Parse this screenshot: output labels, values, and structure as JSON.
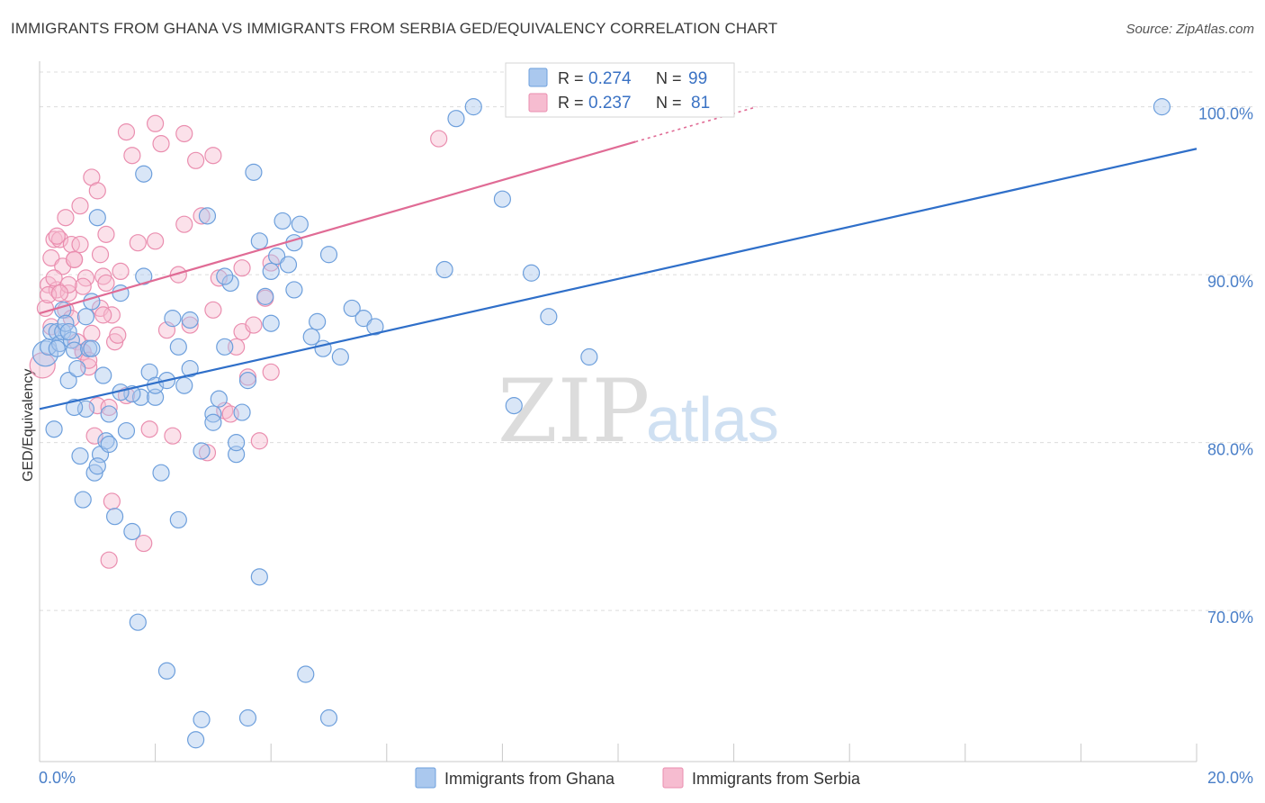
{
  "header": {
    "title": "IMMIGRANTS FROM GHANA VS IMMIGRANTS FROM SERBIA GED/EQUIVALENCY CORRELATION CHART",
    "source": "Source: ZipAtlas.com"
  },
  "watermark": {
    "zip": "ZIP",
    "atlas": "atlas"
  },
  "legend_box": {
    "r_label": "R =",
    "n_label": "N =",
    "ghana": {
      "r": "0.274",
      "n": "99"
    },
    "serbia": {
      "r": "0.237",
      "n": "81"
    }
  },
  "colors": {
    "ghana_fill": "#aac8ee",
    "ghana_stroke": "#6d9fdc",
    "ghana_line": "#2f6fc9",
    "serbia_fill": "#f6bcd0",
    "serbia_stroke": "#ea8eaf",
    "serbia_line": "#e06b95",
    "grid": "#dcdcdc",
    "tick_text": "#4a7fc8"
  },
  "chart_data": {
    "type": "scatter",
    "title": "IMMIGRANTS FROM GHANA VS IMMIGRANTS FROM SERBIA GED/EQUIVALENCY CORRELATION CHART",
    "xlabel": "",
    "ylabel": "GED/Equivalency",
    "xlim": [
      0,
      20
    ],
    "ylim": [
      61,
      102.5
    ],
    "x_tick_labels": [
      "0.0%",
      "20.0%"
    ],
    "y_ticks": [
      70,
      80,
      90,
      100
    ],
    "y_tick_labels": [
      "70.0%",
      "80.0%",
      "90.0%",
      "100.0%"
    ],
    "grid": true,
    "legend": "bottom-center",
    "series": [
      {
        "name": "Immigrants from Ghana",
        "r": 0.274,
        "n": 99,
        "trend": {
          "x": [
            0,
            20
          ],
          "y": [
            82.0,
            97.5
          ]
        },
        "x": [
          0.1,
          0.15,
          0.2,
          0.25,
          0.3,
          0.35,
          0.4,
          0.4,
          0.45,
          0.5,
          0.55,
          0.6,
          0.65,
          0.7,
          0.75,
          0.8,
          0.85,
          0.9,
          0.95,
          1.0,
          1.05,
          1.1,
          1.15,
          1.2,
          1.3,
          1.4,
          1.5,
          1.6,
          1.7,
          1.75,
          1.8,
          1.9,
          2.0,
          2.1,
          2.2,
          2.3,
          2.4,
          2.5,
          2.6,
          2.7,
          2.8,
          2.9,
          3.0,
          3.1,
          3.2,
          3.3,
          3.4,
          3.5,
          3.6,
          3.7,
          3.8,
          3.9,
          4.0,
          4.1,
          4.2,
          4.3,
          4.4,
          4.5,
          4.6,
          4.7,
          4.8,
          4.9,
          5.0,
          5.2,
          5.4,
          5.6,
          5.8,
          7.2,
          7.5,
          8.0,
          8.2,
          8.5,
          8.8,
          9.5,
          0.3,
          0.6,
          0.9,
          1.2,
          1.6,
          2.0,
          2.4,
          2.8,
          3.2,
          3.6,
          4.0,
          4.4,
          0.5,
          0.8,
          1.0,
          1.4,
          1.8,
          2.2,
          2.6,
          3.0,
          3.4,
          3.8,
          7.0,
          19.4,
          5.0
        ],
        "y": [
          85.3,
          85.7,
          86.6,
          80.8,
          86.6,
          85.9,
          86.6,
          87.9,
          87.1,
          83.7,
          86.1,
          85.5,
          84.4,
          79.2,
          76.6,
          82.0,
          85.6,
          88.4,
          78.2,
          93.4,
          79.3,
          84.0,
          80.1,
          79.9,
          75.6,
          88.9,
          80.7,
          74.7,
          69.3,
          82.7,
          96.0,
          84.2,
          82.7,
          78.2,
          66.4,
          87.4,
          85.7,
          83.4,
          84.4,
          62.3,
          79.5,
          93.5,
          81.7,
          82.6,
          85.7,
          89.5,
          79.3,
          81.8,
          63.6,
          96.1,
          92.0,
          88.7,
          90.2,
          91.1,
          93.2,
          90.6,
          89.1,
          93.0,
          66.2,
          86.3,
          87.2,
          85.6,
          91.2,
          85.1,
          88.0,
          87.4,
          86.9,
          99.3,
          100.0,
          94.5,
          82.2,
          90.1,
          87.5,
          85.1,
          85.6,
          82.1,
          85.6,
          81.7,
          82.9,
          83.4,
          75.4,
          63.5,
          89.9,
          83.7,
          87.1,
          91.9,
          86.6,
          87.5,
          78.6,
          83.0,
          89.9,
          83.7,
          87.3,
          81.2,
          80.0,
          72.0,
          90.3,
          100.0,
          63.6
        ],
        "sizes": [
          2,
          1,
          1,
          1,
          1,
          1,
          1,
          1,
          1,
          1,
          1,
          1,
          1,
          1,
          1,
          1,
          1,
          1,
          1,
          1,
          1,
          1,
          1,
          1,
          1,
          1,
          1,
          1,
          1,
          1,
          1,
          1,
          1,
          1,
          1,
          1,
          1,
          1,
          1,
          1,
          1,
          1,
          1,
          1,
          1,
          1,
          1,
          1,
          1,
          1,
          1,
          1,
          1,
          1,
          1,
          1,
          1,
          1,
          1,
          1,
          1,
          1,
          1,
          1,
          1,
          1,
          1,
          1,
          1,
          1,
          1,
          1,
          1,
          1,
          1,
          1,
          1,
          1,
          1,
          1,
          1,
          1,
          1,
          1,
          1,
          1,
          1,
          1,
          1,
          1,
          1,
          1,
          1,
          1,
          1,
          1,
          1,
          1,
          1
        ]
      },
      {
        "name": "Immigrants from Serbia",
        "r": 0.237,
        "n": 81,
        "trend": {
          "x": [
            0,
            12.4
          ],
          "y": [
            87.7,
            100.0
          ]
        },
        "x": [
          0.05,
          0.1,
          0.15,
          0.2,
          0.25,
          0.3,
          0.35,
          0.4,
          0.45,
          0.5,
          0.55,
          0.6,
          0.65,
          0.7,
          0.75,
          0.8,
          0.85,
          0.9,
          0.95,
          1.0,
          1.05,
          1.1,
          1.15,
          1.2,
          1.25,
          1.3,
          1.35,
          1.4,
          1.5,
          1.6,
          1.7,
          1.8,
          1.9,
          2.0,
          2.1,
          2.2,
          2.3,
          2.4,
          2.5,
          2.6,
          2.7,
          2.8,
          2.9,
          3.0,
          3.1,
          3.2,
          3.3,
          3.4,
          3.5,
          3.6,
          3.7,
          3.8,
          3.9,
          4.0,
          0.15,
          0.3,
          0.45,
          0.6,
          0.75,
          0.9,
          1.05,
          1.2,
          0.25,
          0.5,
          0.75,
          1.0,
          1.25,
          0.35,
          0.7,
          1.1,
          1.5,
          2.0,
          2.5,
          3.0,
          3.5,
          4.0,
          6.9,
          0.2,
          0.55,
          0.85,
          1.15
        ],
        "y": [
          84.6,
          88.0,
          89.4,
          91.0,
          92.1,
          89.1,
          92.1,
          90.5,
          93.4,
          88.9,
          91.8,
          90.9,
          86.0,
          94.1,
          85.4,
          89.8,
          84.5,
          86.5,
          80.4,
          82.2,
          91.2,
          89.9,
          92.4,
          73.0,
          76.5,
          86.0,
          86.4,
          90.2,
          98.5,
          97.1,
          91.9,
          74.0,
          80.8,
          99.0,
          97.8,
          86.7,
          80.4,
          90.0,
          98.4,
          87.0,
          96.8,
          93.5,
          79.4,
          87.9,
          89.8,
          81.9,
          81.7,
          85.7,
          86.6,
          83.9,
          87.0,
          80.1,
          88.6,
          84.2,
          88.8,
          92.3,
          87.9,
          90.9,
          89.3,
          95.8,
          88.0,
          82.1,
          89.8,
          89.4,
          85.4,
          95.0,
          87.6,
          88.9,
          91.8,
          87.6,
          82.8,
          92.0,
          93.0,
          97.1,
          90.4,
          90.7,
          98.1,
          86.9,
          87.4,
          84.9,
          89.5
        ],
        "sizes": [
          2,
          1,
          1,
          1,
          1,
          1,
          1,
          1,
          1,
          1,
          1,
          1,
          1,
          1,
          1,
          1,
          1,
          1,
          1,
          1,
          1,
          1,
          1,
          1,
          1,
          1,
          1,
          1,
          1,
          1,
          1,
          1,
          1,
          1,
          1,
          1,
          1,
          1,
          1,
          1,
          1,
          1,
          1,
          1,
          1,
          1,
          1,
          1,
          1,
          1,
          1,
          1,
          1,
          1,
          1,
          1,
          1,
          1,
          1,
          1,
          1,
          1,
          1,
          1,
          1,
          1,
          1,
          1,
          1,
          1,
          1,
          1,
          1,
          1,
          1,
          1,
          1,
          1,
          1,
          1,
          1
        ]
      }
    ]
  }
}
